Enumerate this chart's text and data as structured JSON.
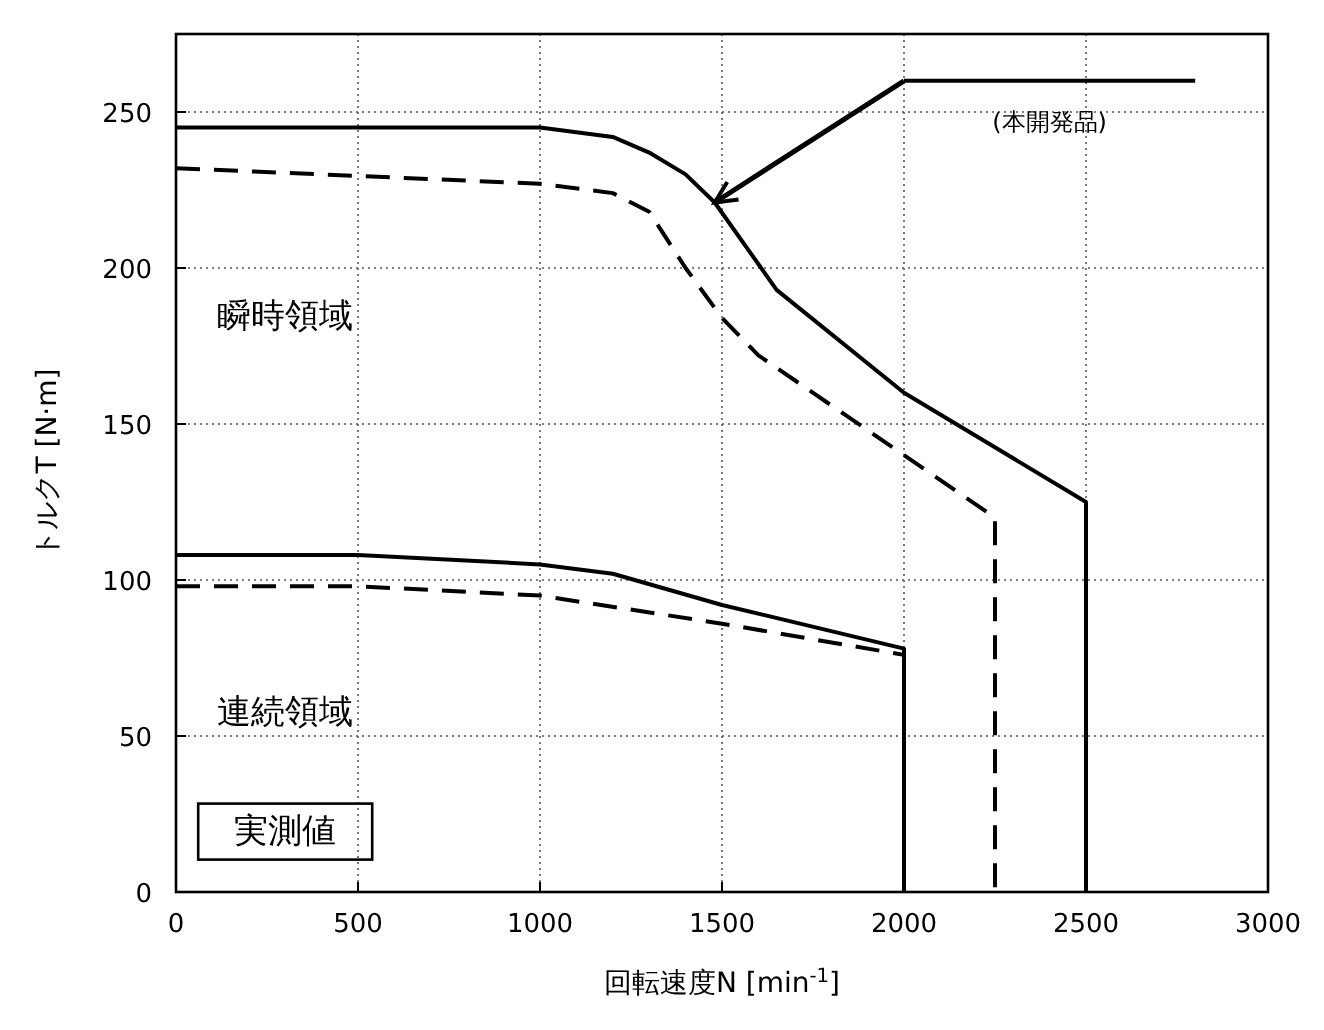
{
  "chart_data": {
    "type": "line",
    "xlabel": "回転速度N [min$^{-1}$]",
    "ylabel": "トルクT [N·m]",
    "xlim": [
      0,
      3000
    ],
    "ylim": [
      0,
      275
    ],
    "xticks": [
      0,
      500,
      1000,
      1500,
      2000,
      2500,
      3000
    ],
    "yticks": [
      0,
      50,
      100,
      150,
      200,
      250
    ],
    "grid": true,
    "marker": "none",
    "series": [
      {
        "color": "#000000",
        "line_style": "solid",
        "x": [
          0,
          1000,
          1200,
          1300,
          1400,
          1480,
          1650,
          2000,
          2500,
          2500
        ],
        "values": [
          245,
          245,
          242,
          237,
          230,
          221,
          193,
          160,
          125,
          0
        ]
      },
      {
        "color": "#000000",
        "line_style": "dashed",
        "x": [
          0,
          1000,
          1200,
          1300,
          1400,
          1500,
          1600,
          2000,
          2250,
          2250
        ],
        "values": [
          232,
          227,
          224,
          218,
          200,
          184,
          172,
          140,
          120,
          0
        ]
      },
      {
        "color": "#000000",
        "line_style": "solid",
        "x": [
          0,
          500,
          1000,
          1200,
          1500,
          2000,
          2000
        ],
        "values": [
          108,
          108,
          105,
          102,
          92,
          78,
          0
        ]
      },
      {
        "color": "#000000",
        "line_style": "dashed",
        "x": [
          0,
          500,
          1000,
          1500,
          2000,
          2000
        ],
        "values": [
          98,
          98,
          95,
          86,
          76,
          0
        ]
      }
    ],
    "annotations": [
      "瞬時領域",
      "連続領域",
      "実測値",
      "(本開発品)"
    ]
  }
}
